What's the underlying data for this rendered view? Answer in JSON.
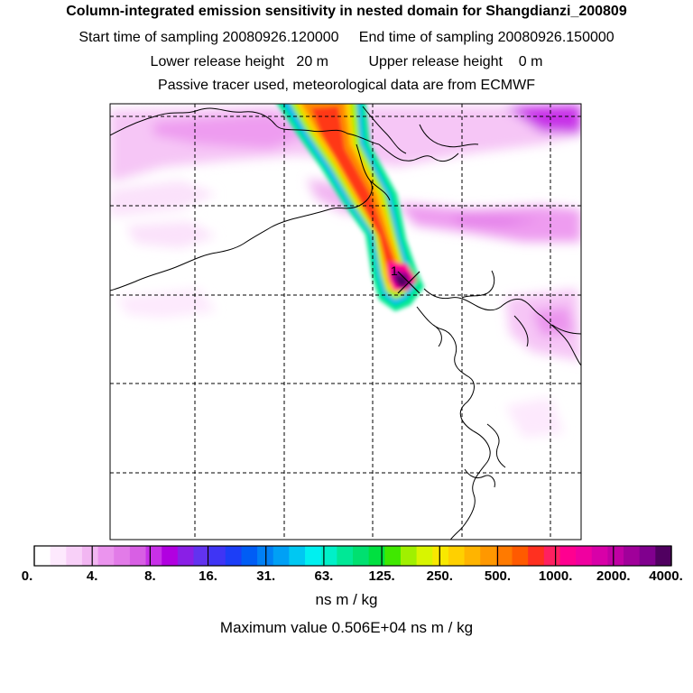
{
  "title": {
    "line1": "Column-integrated emission sensitivity in nested domain for Shangdianzi_200809",
    "start_label": "Start time of sampling 20080926.120000",
    "end_label": "End time of sampling 20080926.150000",
    "lower_label": "Lower release height   20 m",
    "upper_label": "Upper release height    0 m",
    "line4": "Passive tracer used, meteorological data are from ECMWF"
  },
  "release_marker": "1",
  "colorbar": {
    "tick_labels": [
      "0.",
      "4.",
      "8.",
      "16.",
      "31.",
      "63.",
      "125.",
      "250.",
      "500.",
      "1000.",
      "2000.",
      "4000."
    ],
    "colors": [
      "#ffffff",
      "#fde9fd",
      "#f8d0f8",
      "#f2b6f2",
      "#eb94ee",
      "#e27be8",
      "#d85fe4",
      "#c830e8",
      "#b100e0",
      "#8a1fe6",
      "#6233ef",
      "#3f35f5",
      "#1c3ef7",
      "#005df5",
      "#0080f5",
      "#00a0f5",
      "#00c8f2",
      "#00f0f0",
      "#00f0c8",
      "#00e896",
      "#00e070",
      "#00e040",
      "#40e800",
      "#a0f000",
      "#d8f500",
      "#f8e800",
      "#ffd000",
      "#ffb400",
      "#ff9800",
      "#ff7a00",
      "#ff5a00",
      "#ff3020",
      "#ff2060",
      "#ff0090",
      "#f000a0",
      "#d800a8",
      "#c000a4",
      "#a0009a",
      "#80008e",
      "#500060"
    ],
    "unit": "ns m / kg"
  },
  "max_value_label": "Maximum value  0.506E+04 ns m / kg"
}
